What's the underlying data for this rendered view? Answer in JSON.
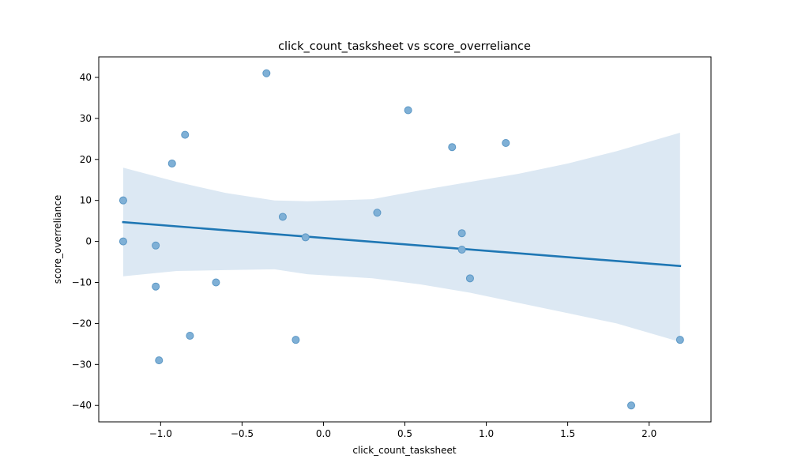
{
  "chart_data": {
    "type": "scatter",
    "title": "click_count_tasksheet vs score_overreliance",
    "xlabel": "click_count_tasksheet",
    "ylabel": "score_overreliance",
    "xlim": [
      -1.38,
      2.38
    ],
    "ylim": [
      -44,
      45
    ],
    "xticks": [
      -1.0,
      -0.5,
      0.0,
      0.5,
      1.0,
      1.5,
      2.0
    ],
    "yticks": [
      -40,
      -30,
      -20,
      -10,
      0,
      10,
      20,
      30,
      40
    ],
    "xtick_labels": [
      "−1.0",
      "−0.5",
      "0.0",
      "0.5",
      "1.0",
      "1.5",
      "2.0"
    ],
    "ytick_labels": [
      "−40",
      "−30",
      "−20",
      "−10",
      "0",
      "10",
      "20",
      "30",
      "40"
    ],
    "grid": false,
    "points": [
      {
        "x": -1.23,
        "y": 10
      },
      {
        "x": -1.23,
        "y": 0
      },
      {
        "x": -1.03,
        "y": -1
      },
      {
        "x": -1.03,
        "y": -11
      },
      {
        "x": -1.01,
        "y": -29
      },
      {
        "x": -0.93,
        "y": 19
      },
      {
        "x": -0.85,
        "y": 26
      },
      {
        "x": -0.82,
        "y": -23
      },
      {
        "x": -0.66,
        "y": -10
      },
      {
        "x": -0.35,
        "y": 41
      },
      {
        "x": -0.25,
        "y": 6
      },
      {
        "x": -0.17,
        "y": -24
      },
      {
        "x": -0.11,
        "y": 1
      },
      {
        "x": 0.33,
        "y": 7
      },
      {
        "x": 0.52,
        "y": 32
      },
      {
        "x": 0.79,
        "y": 23
      },
      {
        "x": 0.85,
        "y": 2
      },
      {
        "x": 0.85,
        "y": -2
      },
      {
        "x": 0.9,
        "y": -9
      },
      {
        "x": 1.12,
        "y": 24
      },
      {
        "x": 1.89,
        "y": -40
      },
      {
        "x": 2.19,
        "y": -24
      }
    ],
    "regression_line": {
      "x": [
        -1.23,
        2.19
      ],
      "y": [
        4.7,
        -6.0
      ]
    },
    "confidence_band": {
      "x": [
        -1.23,
        -0.9,
        -0.6,
        -0.3,
        -0.1,
        0.3,
        0.6,
        0.9,
        1.2,
        1.5,
        1.8,
        2.19
      ],
      "upper": [
        18.0,
        14.5,
        11.8,
        10.0,
        9.8,
        10.3,
        12.5,
        14.5,
        16.5,
        19.0,
        22.0,
        26.5
      ],
      "lower": [
        -8.5,
        -7.2,
        -7.0,
        -6.8,
        -8.0,
        -9.0,
        -10.5,
        -12.5,
        -15.0,
        -17.5,
        -20.0,
        -24.5
      ]
    },
    "colors": {
      "point_fill": "#7fb0d6",
      "point_edge": "#5b97c5",
      "line": "#1f77b4",
      "band": "#dce8f3"
    }
  }
}
